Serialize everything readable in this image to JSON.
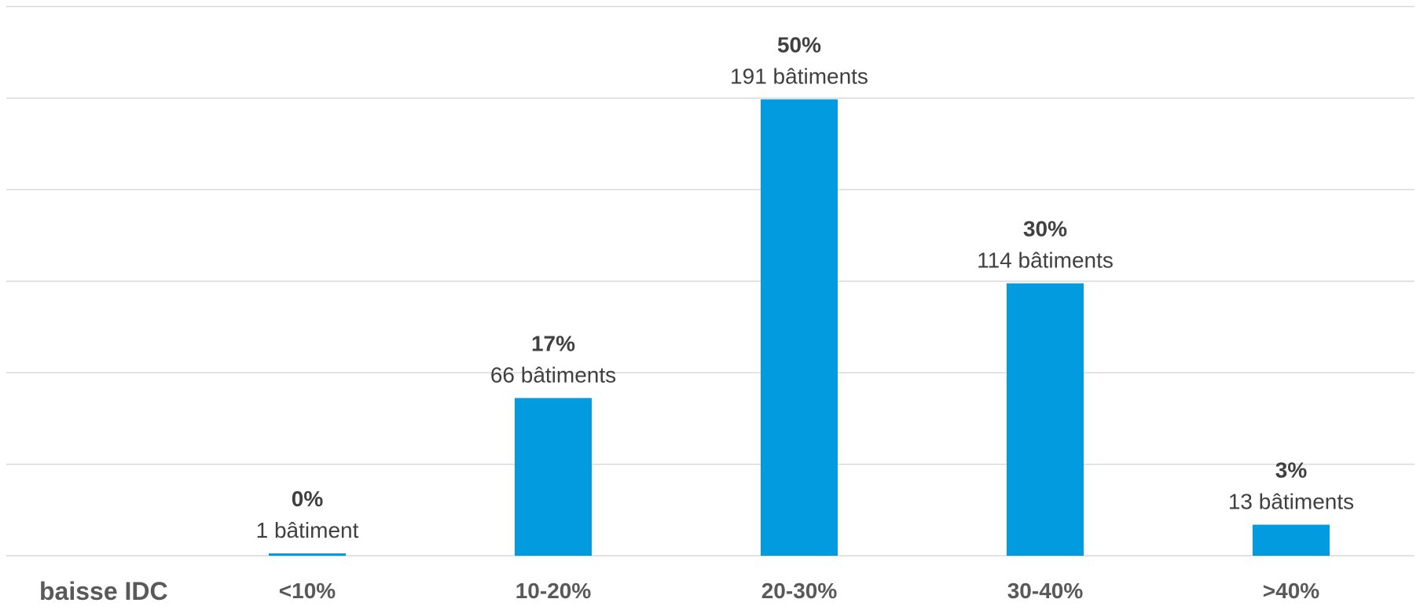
{
  "chart_data": {
    "type": "bar",
    "xlabel": "baisse IDC",
    "categories": [
      "<10%",
      "10-20%",
      "20-30%",
      "30-40%",
      ">40%"
    ],
    "values": [
      1,
      66,
      191,
      114,
      13
    ],
    "percent_labels": [
      "0%",
      "17%",
      "50%",
      "30%",
      "3%"
    ],
    "count_labels": [
      "1 bâtiment",
      "66 bâtiments",
      "191 bâtiments",
      "114 bâtiments",
      "13 bâtiments"
    ],
    "ylim": [
      0,
      230
    ],
    "grid": true,
    "legend": "none",
    "bar_color": "#039be0"
  }
}
